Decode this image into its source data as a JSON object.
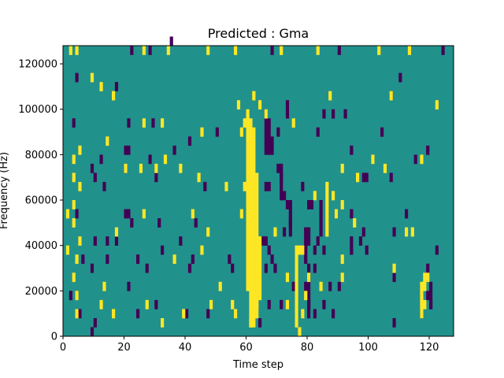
{
  "chart_data": {
    "type": "heatmap",
    "title": "Predicted : Gma",
    "xlabel": "Time step",
    "ylabel": "Frequency (Hz)",
    "xlim": [
      0,
      128
    ],
    "ylim": [
      0,
      128000
    ],
    "x_ticks": [
      0,
      20,
      40,
      60,
      80,
      100,
      120
    ],
    "y_ticks": [
      0,
      20000,
      40000,
      60000,
      80000,
      100000,
      120000
    ],
    "grid": false,
    "colors": {
      "background": "#21918c",
      "high": "#fde725",
      "low": "#440154"
    },
    "cell_width": 1,
    "cell_height": 4000,
    "high_cells": [
      [
        2,
        124000
      ],
      [
        4,
        124000
      ],
      [
        26,
        124000
      ],
      [
        34,
        124000
      ],
      [
        47,
        124000
      ],
      [
        56,
        124000
      ],
      [
        71,
        124000
      ],
      [
        83,
        124000
      ],
      [
        103,
        124000
      ],
      [
        113,
        124000
      ],
      [
        9,
        112000
      ],
      [
        12,
        108000
      ],
      [
        16,
        104000
      ],
      [
        62,
        104000
      ],
      [
        87,
        104000
      ],
      [
        107,
        104000
      ],
      [
        122,
        100000
      ],
      [
        57,
        100000
      ],
      [
        75,
        92000
      ],
      [
        64,
        100000
      ],
      [
        66,
        96000
      ],
      [
        26,
        92000
      ],
      [
        32,
        92000
      ],
      [
        45,
        88000
      ],
      [
        58,
        88000
      ],
      [
        59,
        92000
      ],
      [
        60,
        96000
      ],
      [
        14,
        84000
      ],
      [
        5,
        80000
      ],
      [
        3,
        76000
      ],
      [
        33,
        76000
      ],
      [
        101,
        76000
      ],
      [
        117,
        76000
      ],
      [
        20,
        72000
      ],
      [
        25,
        72000
      ],
      [
        30,
        72000
      ],
      [
        38,
        72000
      ],
      [
        91,
        72000
      ],
      [
        3,
        68000
      ],
      [
        5,
        64000
      ],
      [
        44,
        68000
      ],
      [
        63,
        68000
      ],
      [
        96,
        68000
      ],
      [
        105,
        72000
      ],
      [
        53,
        64000
      ],
      [
        59,
        64000
      ],
      [
        82,
        60000
      ],
      [
        88,
        60000
      ],
      [
        91,
        56000
      ],
      [
        3,
        56000
      ],
      [
        1,
        52000
      ],
      [
        26,
        52000
      ],
      [
        42,
        52000
      ],
      [
        58,
        52000
      ],
      [
        89,
        52000
      ],
      [
        3,
        48000
      ],
      [
        95,
        48000
      ],
      [
        17,
        44000
      ],
      [
        47,
        44000
      ],
      [
        69,
        44000
      ],
      [
        112,
        44000
      ],
      [
        114,
        44000
      ],
      [
        5,
        40000
      ],
      [
        1,
        36000
      ],
      [
        45,
        36000
      ],
      [
        77,
        36000
      ],
      [
        78,
        36000
      ],
      [
        4,
        32000
      ],
      [
        36,
        32000
      ],
      [
        91,
        32000
      ],
      [
        3,
        24000
      ],
      [
        73,
        24000
      ],
      [
        91,
        24000
      ],
      [
        108,
        28000
      ],
      [
        119,
        24000
      ],
      [
        13,
        20000
      ],
      [
        51,
        20000
      ],
      [
        84,
        20000
      ],
      [
        4,
        16000
      ],
      [
        12,
        12000
      ],
      [
        27,
        12000
      ],
      [
        48,
        12000
      ],
      [
        55,
        12000
      ],
      [
        63,
        12000
      ],
      [
        73,
        12000
      ],
      [
        118,
        12000
      ],
      [
        4,
        8000
      ],
      [
        16,
        8000
      ],
      [
        39,
        8000
      ],
      [
        56,
        8000
      ],
      [
        32,
        4000
      ],
      [
        61,
        4000
      ],
      [
        76,
        4000
      ],
      [
        77,
        0
      ],
      [
        78,
        8000
      ],
      [
        79,
        16000
      ],
      [
        80,
        24000
      ]
    ],
    "high_columns": [
      {
        "x": 60,
        "from": 20000,
        "to": 92000
      },
      {
        "x": 61,
        "from": 4000,
        "to": 92000
      },
      {
        "x": 62,
        "from": 4000,
        "to": 88000
      },
      {
        "x": 63,
        "from": 8000,
        "to": 64000
      },
      {
        "x": 64,
        "from": 16000,
        "to": 40000
      },
      {
        "x": 76,
        "from": 8000,
        "to": 36000
      },
      {
        "x": 86,
        "from": 44000,
        "to": 64000
      },
      {
        "x": 117,
        "from": 8000,
        "to": 20000
      },
      {
        "x": 118,
        "from": 20000,
        "to": 24000
      }
    ],
    "low_cells": [
      [
        35,
        128000
      ],
      [
        22,
        124000
      ],
      [
        28,
        124000
      ],
      [
        68,
        124000
      ],
      [
        90,
        124000
      ],
      [
        124,
        124000
      ],
      [
        4,
        112000
      ],
      [
        17,
        108000
      ],
      [
        110,
        112000
      ],
      [
        107,
        104000
      ],
      [
        73,
        100000
      ],
      [
        73,
        96000
      ],
      [
        85,
        96000
      ],
      [
        88,
        96000
      ],
      [
        92,
        96000
      ],
      [
        3,
        92000
      ],
      [
        21,
        92000
      ],
      [
        29,
        92000
      ],
      [
        50,
        88000
      ],
      [
        83,
        88000
      ],
      [
        104,
        88000
      ],
      [
        41,
        84000
      ],
      [
        68,
        84000
      ],
      [
        70,
        88000
      ],
      [
        68,
        80000
      ],
      [
        20,
        80000
      ],
      [
        21,
        80000
      ],
      [
        36,
        80000
      ],
      [
        94,
        80000
      ],
      [
        119,
        80000
      ],
      [
        9,
        72000
      ],
      [
        12,
        76000
      ],
      [
        28,
        76000
      ],
      [
        70,
        72000
      ],
      [
        71,
        68000
      ],
      [
        98,
        68000
      ],
      [
        99,
        68000
      ],
      [
        107,
        68000
      ],
      [
        115,
        76000
      ],
      [
        10,
        68000
      ],
      [
        20,
        72000
      ],
      [
        30,
        68000
      ],
      [
        13,
        64000
      ],
      [
        46,
        64000
      ],
      [
        66,
        64000
      ],
      [
        67,
        64000
      ],
      [
        72,
        60000
      ],
      [
        78,
        64000
      ],
      [
        4,
        52000
      ],
      [
        20,
        52000
      ],
      [
        21,
        52000
      ],
      [
        73,
        56000
      ],
      [
        80,
        56000
      ],
      [
        81,
        56000
      ],
      [
        89,
        52000
      ],
      [
        94,
        52000
      ],
      [
        112,
        52000
      ],
      [
        22,
        48000
      ],
      [
        31,
        48000
      ],
      [
        43,
        48000
      ],
      [
        74,
        48000
      ],
      [
        72,
        44000
      ],
      [
        80,
        44000
      ],
      [
        98,
        44000
      ],
      [
        108,
        44000
      ],
      [
        10,
        40000
      ],
      [
        14,
        40000
      ],
      [
        17,
        40000
      ],
      [
        38,
        40000
      ],
      [
        65,
        40000
      ],
      [
        66,
        40000
      ],
      [
        67,
        36000
      ],
      [
        80,
        40000
      ],
      [
        82,
        36000
      ],
      [
        83,
        40000
      ],
      [
        85,
        36000
      ],
      [
        94,
        40000
      ],
      [
        97,
        40000
      ],
      [
        99,
        36000
      ],
      [
        6,
        32000
      ],
      [
        14,
        32000
      ],
      [
        24,
        32000
      ],
      [
        32,
        36000
      ],
      [
        42,
        32000
      ],
      [
        54,
        32000
      ],
      [
        68,
        32000
      ],
      [
        69,
        28000
      ],
      [
        82,
        28000
      ],
      [
        94,
        36000
      ],
      [
        122,
        36000
      ],
      [
        9,
        28000
      ],
      [
        27,
        28000
      ],
      [
        41,
        28000
      ],
      [
        55,
        28000
      ],
      [
        66,
        28000
      ],
      [
        108,
        24000
      ],
      [
        119,
        28000
      ],
      [
        21,
        20000
      ],
      [
        75,
        20000
      ],
      [
        79,
        20000
      ],
      [
        87,
        20000
      ],
      [
        90,
        20000
      ],
      [
        119,
        16000
      ],
      [
        120,
        12000
      ],
      [
        2,
        16000
      ],
      [
        30,
        12000
      ],
      [
        67,
        12000
      ],
      [
        71,
        12000
      ],
      [
        80,
        12000
      ],
      [
        85,
        12000
      ],
      [
        117,
        8000
      ],
      [
        5,
        8000
      ],
      [
        24,
        8000
      ],
      [
        40,
        8000
      ],
      [
        47,
        8000
      ],
      [
        62,
        8000
      ],
      [
        82,
        8000
      ],
      [
        88,
        8000
      ],
      [
        108,
        4000
      ],
      [
        10,
        4000
      ],
      [
        64,
        4000
      ],
      [
        9,
        0
      ]
    ],
    "low_columns": [
      {
        "x": 66,
        "from": 80000,
        "to": 96000
      },
      {
        "x": 67,
        "from": 80000,
        "to": 92000
      },
      {
        "x": 71,
        "from": 60000,
        "to": 72000
      },
      {
        "x": 74,
        "from": 44000,
        "to": 56000
      },
      {
        "x": 79,
        "from": 32000,
        "to": 44000
      },
      {
        "x": 80,
        "from": 8000,
        "to": 28000
      },
      {
        "x": 84,
        "from": 44000,
        "to": 56000
      },
      {
        "x": 120,
        "from": 12000,
        "to": 20000
      }
    ]
  }
}
